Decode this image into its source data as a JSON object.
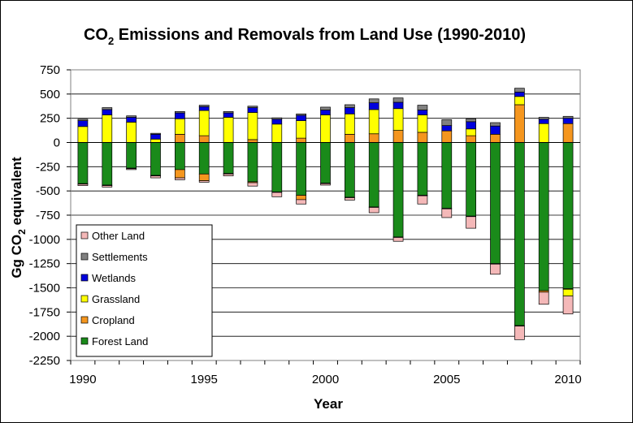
{
  "chart_data": {
    "type": "bar",
    "stacked": true,
    "title": {
      "prefix": "CO",
      "sub": "2",
      "suffix": " Emissions and Removals from Land Use (1990-2010)"
    },
    "xlabel": "Year",
    "ylabel": {
      "prefix": "Gg CO",
      "sub": "2",
      "suffix": " equivalent"
    },
    "ylim": [
      -2250,
      750
    ],
    "yticks": [
      750,
      500,
      250,
      0,
      -250,
      -500,
      -750,
      -1000,
      -1250,
      -1500,
      -1750,
      -2000,
      -2250
    ],
    "xticks": [
      "1990",
      "1995",
      "2000",
      "2005",
      "2010"
    ],
    "grid": true,
    "legend_position": "bottom-left",
    "categories": [
      "1990",
      "1991",
      "1992",
      "1993",
      "1994",
      "1995",
      "1996",
      "1997",
      "1998",
      "1999",
      "2000",
      "2001",
      "2002",
      "2003",
      "2004",
      "2005",
      "2006",
      "2007",
      "2008",
      "2009",
      "2010"
    ],
    "series": [
      {
        "name": "Forest Land",
        "color": "#1a8a1a",
        "values": [
          -425,
          -440,
          -265,
          -340,
          -280,
          -325,
          -320,
          -405,
          -510,
          -545,
          -420,
          -565,
          -665,
          -975,
          -545,
          -680,
          -760,
          -1250,
          -1890,
          -1530,
          -1510
        ]
      },
      {
        "name": "Cropland",
        "color": "#f5961e",
        "values": [
          0,
          0,
          0,
          0,
          85,
          70,
          0,
          30,
          0,
          45,
          0,
          85,
          90,
          125,
          105,
          120,
          70,
          85,
          390,
          0,
          195
        ]
      },
      {
        "name": "Grassland",
        "color": "#ffff00",
        "values": [
          165,
          285,
          210,
          35,
          160,
          260,
          260,
          280,
          190,
          180,
          285,
          210,
          250,
          225,
          180,
          0,
          70,
          0,
          85,
          195,
          0
        ]
      },
      {
        "name": "Wetlands",
        "color": "#0000dd",
        "values": [
          60,
          55,
          50,
          50,
          60,
          40,
          45,
          50,
          50,
          55,
          50,
          65,
          70,
          65,
          50,
          55,
          75,
          85,
          45,
          45,
          55
        ]
      },
      {
        "name": "Settlements",
        "color": "#808080",
        "values": [
          15,
          20,
          15,
          10,
          15,
          15,
          15,
          15,
          15,
          15,
          30,
          30,
          40,
          45,
          50,
          60,
          30,
          35,
          40,
          20,
          20
        ]
      },
      {
        "name": "Other Land",
        "color": "#f4b8b8",
        "values": [
          -15,
          -15,
          -10,
          -20,
          -20,
          -15,
          -20,
          -35,
          -45,
          -45,
          -15,
          -25,
          -55,
          -40,
          -85,
          -90,
          -120,
          -105,
          -140,
          -125,
          -185
        ]
      }
    ],
    "negative_extras": {
      "Cropland": [
        -5,
        -5,
        -5,
        -5,
        -85,
        -70,
        -5,
        -10,
        -5,
        -45,
        -5,
        -5,
        -5,
        -5,
        -5,
        -5,
        -5,
        -5,
        -5,
        -15,
        -5
      ],
      "Grassland": [
        0,
        0,
        0,
        0,
        0,
        0,
        0,
        0,
        0,
        0,
        0,
        0,
        0,
        0,
        0,
        0,
        0,
        0,
        0,
        0,
        -70
      ]
    }
  }
}
